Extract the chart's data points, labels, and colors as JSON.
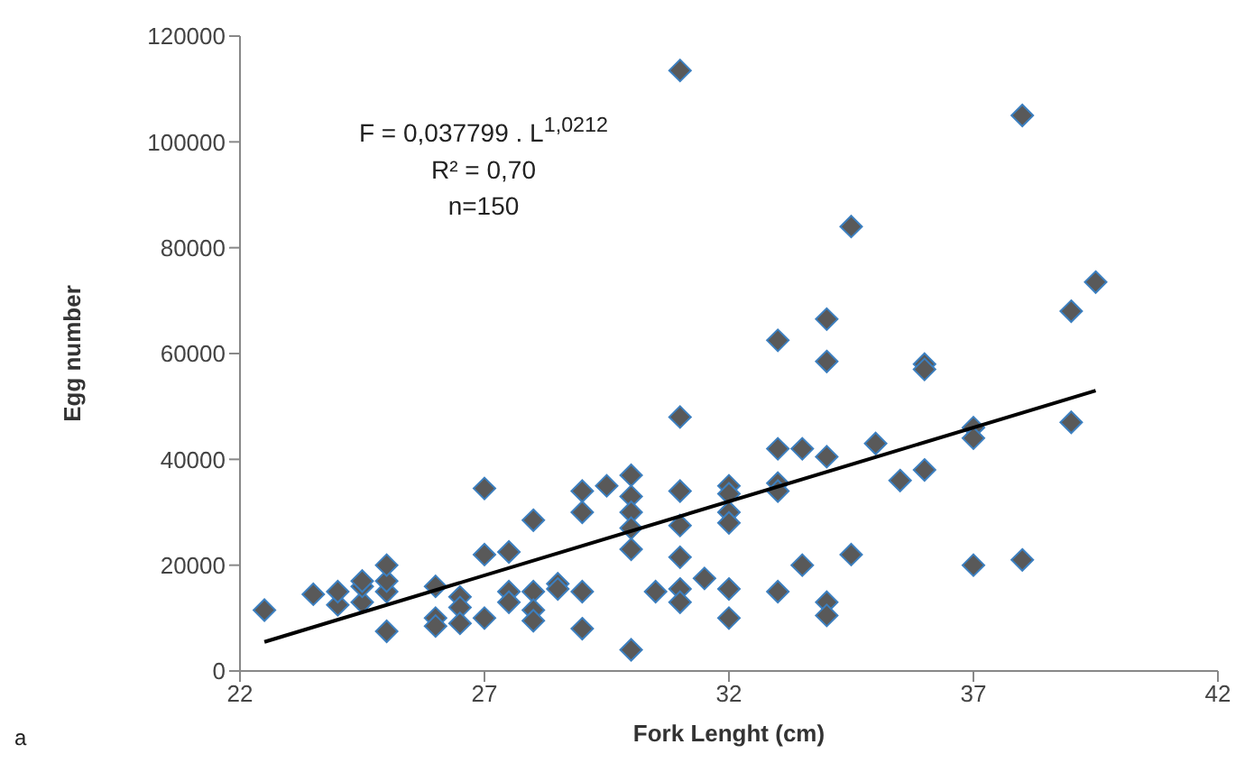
{
  "chart_data": {
    "type": "scatter",
    "xlabel": "Fork Lenght (cm)",
    "ylabel": "Egg number",
    "annotations": [
      "F = 0,037799 . L$^{1,0212}$",
      "R² = 0,70",
      "n=150",
      "a"
    ],
    "xlim": [
      22,
      42
    ],
    "xticks": [
      22,
      27,
      32,
      37,
      42
    ],
    "ylim": [
      0,
      120000
    ],
    "yticks": [
      0,
      20000,
      40000,
      60000,
      80000,
      100000,
      120000
    ],
    "grid": false,
    "legend": false,
    "marker": "diamond",
    "series": [
      {
        "color": "#595959",
        "x": [
          22.5,
          23.5,
          24,
          24,
          24.5,
          24.5,
          24.5,
          25,
          25,
          25,
          25,
          26,
          26,
          26,
          26.5,
          26.5,
          26.5,
          27,
          27,
          27,
          27.5,
          27.5,
          27.5,
          28,
          28,
          28,
          28,
          28.5,
          28.5,
          29,
          29,
          29,
          29,
          29.5,
          30,
          30,
          30,
          30,
          30,
          30,
          30.5,
          31,
          31,
          31,
          31,
          31,
          31,
          31,
          31.5,
          32,
          32,
          32,
          32,
          32,
          32,
          33,
          33,
          33,
          33,
          33,
          33.5,
          33.5,
          34,
          34,
          34,
          34,
          34,
          34.5,
          34.5,
          35,
          35.5,
          36,
          36,
          36,
          37,
          37,
          37,
          38,
          38,
          39,
          39,
          39.5
        ],
        "values": [
          11500,
          14500,
          12500,
          15000,
          13000,
          16000,
          17000,
          7500,
          15000,
          17000,
          20000,
          16000,
          10000,
          8500,
          14000,
          12000,
          9000,
          34500,
          22000,
          10000,
          22500,
          15000,
          13000,
          28500,
          15000,
          11500,
          9500,
          16500,
          15500,
          34000,
          30000,
          15000,
          8000,
          35000,
          37000,
          33000,
          30000,
          27000,
          23000,
          4000,
          15000,
          113500,
          48000,
          34000,
          27500,
          21500,
          15500,
          13000,
          17500,
          35000,
          33500,
          30000,
          28000,
          15500,
          10000,
          62500,
          42000,
          35500,
          34000,
          15000,
          42000,
          20000,
          66500,
          58500,
          40500,
          13000,
          10500,
          84000,
          22000,
          43000,
          36000,
          58000,
          57000,
          38000,
          46000,
          44000,
          20000,
          105000,
          21000,
          68000,
          47000,
          73500
        ]
      },
      {
        "type": "line",
        "color": "#000000",
        "marker": "none",
        "line_style": "solid",
        "x": [
          22.5,
          39.5
        ],
        "values": [
          5500,
          53000
        ]
      }
    ]
  }
}
